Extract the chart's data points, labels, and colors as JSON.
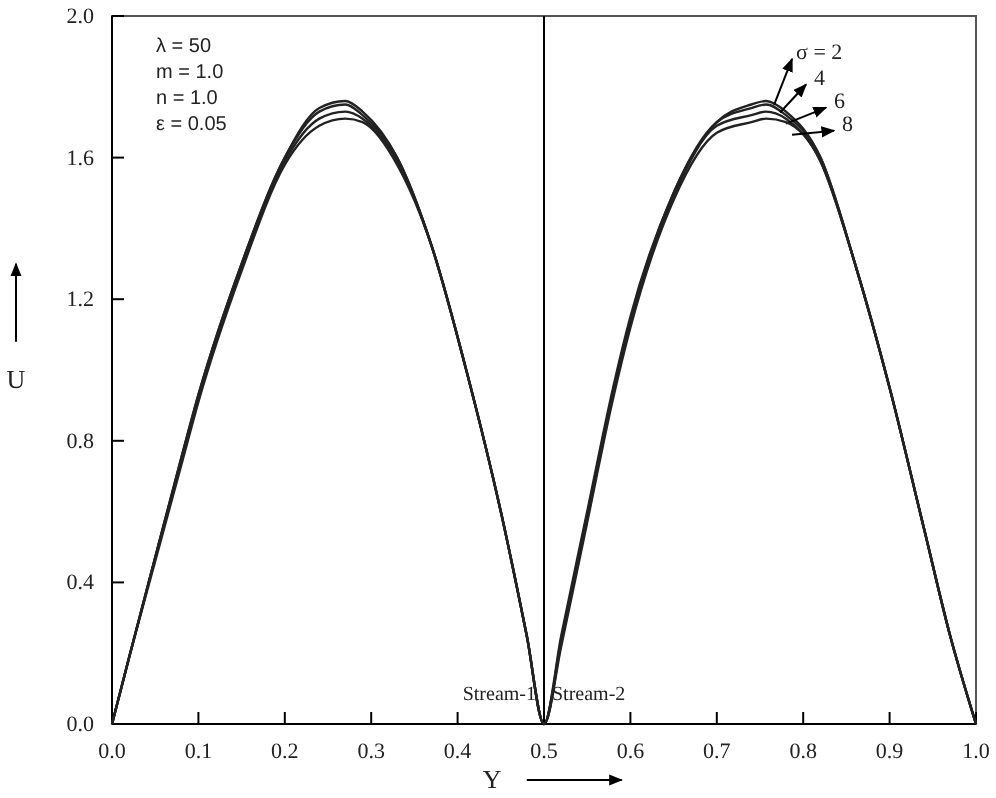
{
  "chart_data": {
    "type": "line",
    "xlabel": "Y",
    "ylabel": "U",
    "xlim": [
      0,
      1
    ],
    "ylim": [
      0,
      2
    ],
    "xticks": [
      {
        "value": 0,
        "label": "0.0"
      },
      0.1,
      0.2,
      0.3,
      0.4,
      0.5,
      0.6,
      0.7,
      0.8,
      0.9,
      {
        "value": 1,
        "label": "1.0"
      }
    ],
    "yticks": [
      {
        "value": 0,
        "label": "0.0"
      },
      0.4,
      0.8,
      1.2,
      1.6,
      {
        "value": 2,
        "label": "2.0"
      }
    ],
    "grid": false,
    "legend": false,
    "marker": "none",
    "line_style": "solid",
    "ref_lines": [
      {
        "axis": "x",
        "value": 0.5,
        "color": "#000000"
      }
    ],
    "annotations": [
      "λ = 50",
      "m = 1.0",
      "n = 1.0",
      "ε = 0.05",
      "Stream-1",
      "Stream-2"
    ],
    "series": [
      {
        "name": "σ = 2",
        "color": "#222222",
        "x": [
          0,
          0.02,
          0.05,
          0.08,
          0.1,
          0.15,
          0.2,
          0.24,
          0.27,
          0.29,
          0.33,
          0.37,
          0.41,
          0.45,
          0.48,
          0.5,
          0.52,
          0.55,
          0.58,
          0.6,
          0.65,
          0.7,
          0.74,
          0.757,
          0.78,
          0.82,
          0.86,
          0.9,
          0.94,
          0.97,
          1
        ],
        "values": [
          0,
          0.19,
          0.47,
          0.75,
          0.93,
          1.3,
          1.6,
          1.74,
          1.76,
          1.73,
          1.6,
          1.35,
          1.0,
          0.6,
          0.25,
          0,
          0.25,
          0.6,
          0.95,
          1.15,
          1.5,
          1.7,
          1.75,
          1.76,
          1.73,
          1.6,
          1.3,
          0.95,
          0.55,
          0.25,
          0
        ]
      },
      {
        "name": "4",
        "color": "#222222",
        "x": [
          0,
          0.02,
          0.05,
          0.08,
          0.1,
          0.15,
          0.2,
          0.24,
          0.27,
          0.29,
          0.33,
          0.37,
          0.41,
          0.45,
          0.48,
          0.5,
          0.52,
          0.55,
          0.58,
          0.6,
          0.65,
          0.7,
          0.74,
          0.757,
          0.78,
          0.82,
          0.86,
          0.9,
          0.94,
          0.97,
          1
        ],
        "values": [
          0,
          0.19,
          0.47,
          0.75,
          0.93,
          1.3,
          1.6,
          1.73,
          1.75,
          1.72,
          1.6,
          1.35,
          1.0,
          0.6,
          0.25,
          0,
          0.24,
          0.59,
          0.94,
          1.14,
          1.5,
          1.7,
          1.74,
          1.75,
          1.72,
          1.6,
          1.3,
          0.95,
          0.55,
          0.25,
          0
        ]
      },
      {
        "name": "6",
        "color": "#222222",
        "x": [
          0,
          0.02,
          0.05,
          0.08,
          0.1,
          0.15,
          0.2,
          0.24,
          0.27,
          0.29,
          0.33,
          0.37,
          0.41,
          0.45,
          0.48,
          0.5,
          0.52,
          0.55,
          0.58,
          0.6,
          0.65,
          0.7,
          0.74,
          0.757,
          0.78,
          0.82,
          0.86,
          0.9,
          0.94,
          0.97,
          1
        ],
        "values": [
          0,
          0.19,
          0.47,
          0.74,
          0.92,
          1.29,
          1.59,
          1.71,
          1.73,
          1.71,
          1.59,
          1.35,
          1.0,
          0.6,
          0.25,
          0,
          0.23,
          0.58,
          0.93,
          1.13,
          1.49,
          1.69,
          1.72,
          1.73,
          1.71,
          1.59,
          1.3,
          0.95,
          0.55,
          0.25,
          0
        ]
      },
      {
        "name": "8",
        "color": "#222222",
        "x": [
          0,
          0.02,
          0.05,
          0.08,
          0.1,
          0.15,
          0.2,
          0.24,
          0.27,
          0.29,
          0.33,
          0.37,
          0.41,
          0.45,
          0.48,
          0.5,
          0.52,
          0.55,
          0.58,
          0.6,
          0.65,
          0.7,
          0.74,
          0.757,
          0.78,
          0.82,
          0.86,
          0.9,
          0.94,
          0.97,
          1
        ],
        "values": [
          0,
          0.19,
          0.46,
          0.73,
          0.91,
          1.28,
          1.58,
          1.69,
          1.71,
          1.7,
          1.58,
          1.35,
          1.0,
          0.6,
          0.25,
          0,
          0.22,
          0.57,
          0.92,
          1.12,
          1.48,
          1.67,
          1.7,
          1.71,
          1.7,
          1.59,
          1.3,
          0.95,
          0.55,
          0.25,
          0
        ]
      }
    ]
  }
}
